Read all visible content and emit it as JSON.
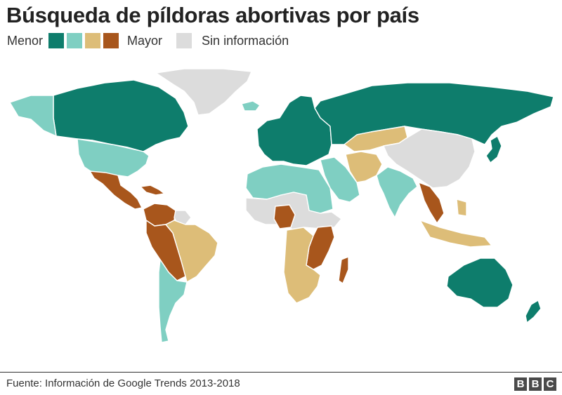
{
  "title": "Búsqueda de píldoras abortivas por país",
  "legend": {
    "low_label": "Menor",
    "high_label": "Mayor",
    "no_data_label": "Sin información",
    "scale_colors": [
      "#0e7d6c",
      "#7fcfc2",
      "#ddbd78",
      "#a8561c"
    ],
    "no_data_color": "#dcdcdc"
  },
  "map": {
    "border_color": "#ffffff",
    "regions": [
      {
        "name": "canada",
        "level": 0
      },
      {
        "name": "greenland",
        "level": -1
      },
      {
        "name": "alaska",
        "level": 1
      },
      {
        "name": "usa",
        "level": 1
      },
      {
        "name": "mexico-central-america",
        "level": 3
      },
      {
        "name": "caribbean",
        "level": 3
      },
      {
        "name": "colombia-venezuela",
        "level": 3
      },
      {
        "name": "guianas",
        "level": -1
      },
      {
        "name": "peru-bolivia-paraguay",
        "level": 3
      },
      {
        "name": "brazil",
        "level": 2
      },
      {
        "name": "argentina-chile",
        "level": 1
      },
      {
        "name": "iceland",
        "level": 1
      },
      {
        "name": "europe",
        "level": 0
      },
      {
        "name": "russia",
        "level": 0
      },
      {
        "name": "kazakhstan-mongolia",
        "level": 2
      },
      {
        "name": "china",
        "level": -1
      },
      {
        "name": "japan",
        "level": 0
      },
      {
        "name": "middle-east",
        "level": 1
      },
      {
        "name": "iran-afghanistan",
        "level": 2
      },
      {
        "name": "india",
        "level": 1
      },
      {
        "name": "southeast-asia",
        "level": 3
      },
      {
        "name": "indonesia-philippines",
        "level": 2
      },
      {
        "name": "north-africa",
        "level": 1
      },
      {
        "name": "sahel-sahara",
        "level": -1
      },
      {
        "name": "nigeria",
        "level": 3
      },
      {
        "name": "east-africa",
        "level": 3
      },
      {
        "name": "southern-africa",
        "level": 2
      },
      {
        "name": "madagascar",
        "level": 3
      },
      {
        "name": "australia",
        "level": 0
      },
      {
        "name": "new-zealand",
        "level": 0
      }
    ]
  },
  "footer": {
    "source": "Fuente: Información de Google Trends 2013-2018",
    "logo_letters": [
      "B",
      "B",
      "C"
    ]
  }
}
